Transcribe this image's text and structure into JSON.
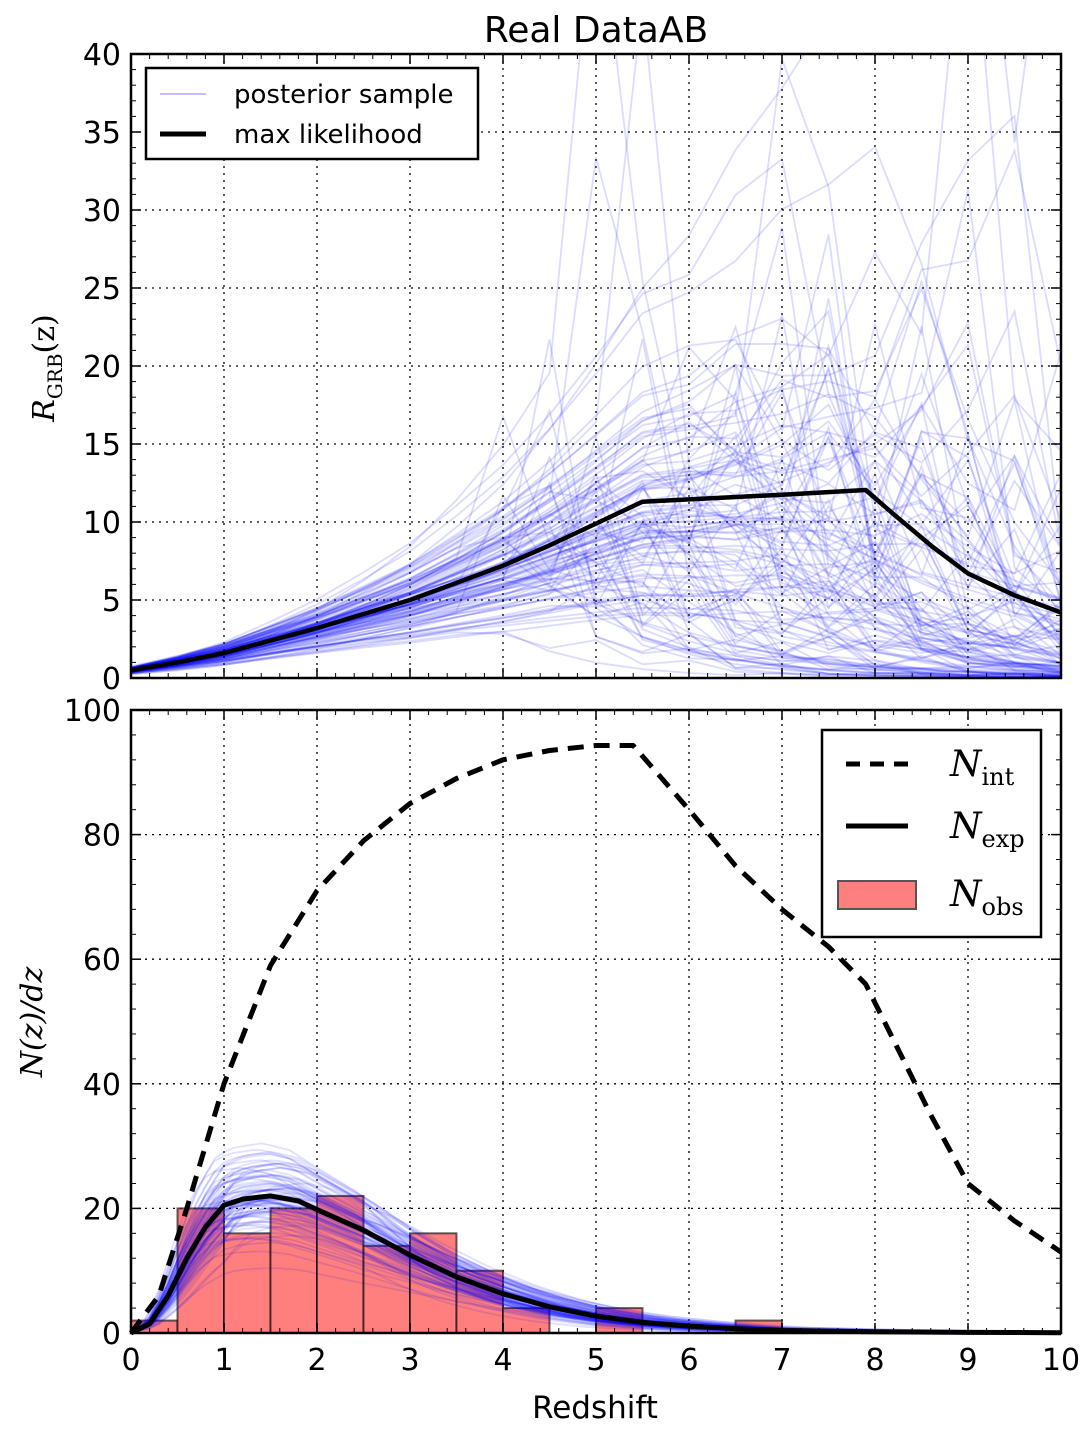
{
  "figure_title": "Real DataAB",
  "chart_data": [
    {
      "id": "top",
      "type": "line",
      "title": "Real DataAB",
      "xlabel": "",
      "ylabel": "R_GRB(z)",
      "ylabel_main": "R",
      "ylabel_sub": "GRB",
      "ylabel_tail": "(z)",
      "xlim": [
        0,
        10
      ],
      "ylim": [
        0,
        40
      ],
      "xticks": [
        "0",
        "1",
        "2",
        "3",
        "4",
        "5",
        "6",
        "7",
        "8",
        "9",
        "10"
      ],
      "yticks": [
        "0",
        "5",
        "10",
        "15",
        "20",
        "25",
        "30",
        "35",
        "40"
      ],
      "grid": true,
      "legend_position": "top-left",
      "legend": [
        {
          "label": "posterior sample",
          "style": "thin-blue"
        },
        {
          "label": "max likelihood",
          "style": "thick-black"
        }
      ],
      "series": [
        {
          "name": "max likelihood",
          "color": "#000000",
          "x": [
            0,
            0.5,
            1,
            1.5,
            2,
            2.5,
            3,
            3.5,
            4,
            4.5,
            5,
            5.5,
            6,
            7,
            7.9,
            8.2,
            8.6,
            9,
            9.5,
            10
          ],
          "y": [
            0.5,
            1.0,
            1.6,
            2.4,
            3.2,
            4.1,
            5.0,
            6.1,
            7.2,
            8.5,
            9.9,
            11.3,
            11.45,
            11.75,
            12.05,
            10.5,
            8.5,
            6.7,
            5.3,
            4.2
          ]
        }
      ],
      "sample_color": "#0000ff",
      "sample_count": 120
    },
    {
      "id": "bottom",
      "type": "bar",
      "title": "",
      "xlabel": "Redshift",
      "ylabel": "N(z)/dz",
      "xlim": [
        0,
        10
      ],
      "ylim": [
        0,
        100
      ],
      "xticks": [
        "0",
        "1",
        "2",
        "3",
        "4",
        "5",
        "6",
        "7",
        "8",
        "9",
        "10"
      ],
      "yticks": [
        "0",
        "20",
        "40",
        "60",
        "80",
        "100"
      ],
      "grid": true,
      "legend_position": "top-right",
      "legend": [
        {
          "label_main": "N",
          "label_sub": "int",
          "style": "dashed-black"
        },
        {
          "label_main": "N",
          "label_sub": "exp",
          "style": "thick-black"
        },
        {
          "label_main": "N",
          "label_sub": "obs",
          "style": "red-box"
        }
      ],
      "histogram": {
        "name": "N_obs",
        "color": "#ff7f7f",
        "bin_width": 0.5,
        "bin_starts": [
          0,
          0.5,
          1,
          1.5,
          2,
          2.5,
          3,
          3.5,
          4,
          4.5,
          5,
          5.5,
          6,
          6.5,
          7,
          7.5,
          8,
          8.5,
          9,
          9.5
        ],
        "values": [
          2,
          20,
          16,
          20,
          22,
          14,
          16,
          10,
          4,
          0,
          4,
          0,
          0,
          2,
          0,
          0,
          0,
          0,
          0,
          0
        ]
      },
      "series": [
        {
          "name": "N_int",
          "color": "#000000",
          "dash": true,
          "x": [
            0,
            0.3,
            0.6,
            1,
            1.5,
            2,
            2.5,
            3,
            3.5,
            4,
            4.5,
            5,
            5.4,
            6,
            6.5,
            7,
            7.5,
            7.9,
            8.2,
            8.6,
            9,
            9.5,
            10
          ],
          "y": [
            0,
            6,
            20,
            40,
            59,
            71,
            79,
            85,
            89,
            92,
            93.5,
            94.3,
            94.3,
            84,
            75,
            68,
            62,
            56,
            47,
            35,
            24,
            18,
            13
          ]
        },
        {
          "name": "N_exp",
          "color": "#000000",
          "x": [
            0,
            0.2,
            0.4,
            0.6,
            0.8,
            1,
            1.2,
            1.5,
            1.8,
            2,
            2.5,
            3,
            3.5,
            4,
            4.5,
            5,
            5.5,
            6,
            6.5,
            7,
            8,
            9,
            10
          ],
          "y": [
            0,
            1.5,
            6,
            12,
            17,
            20.5,
            21.5,
            22,
            21.2,
            19.8,
            16.5,
            12.5,
            9,
            6.3,
            4.2,
            2.7,
            1.7,
            1.1,
            0.7,
            0.4,
            0.2,
            0.1,
            0.05
          ]
        }
      ],
      "sample_color": "#0000ff",
      "sample_count": 90
    }
  ]
}
